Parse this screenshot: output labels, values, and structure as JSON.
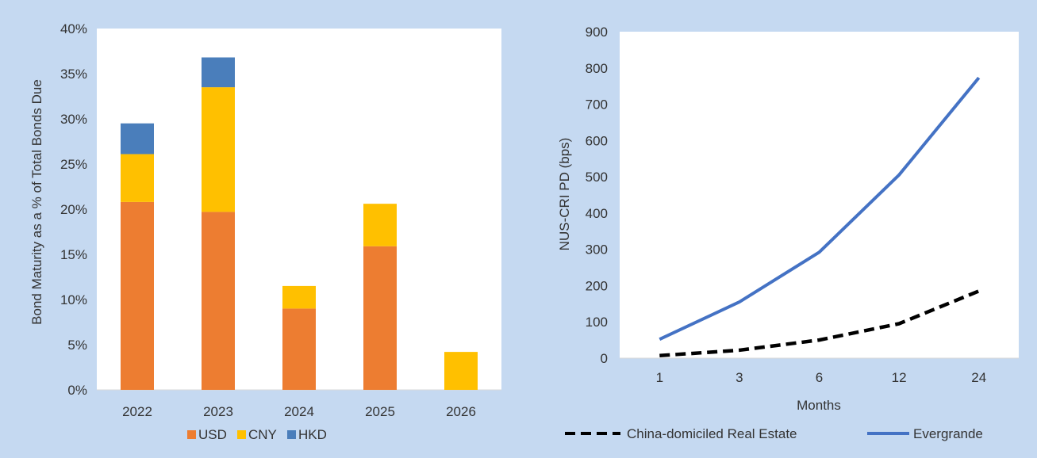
{
  "chart_data": [
    {
      "type": "bar",
      "stacked": true,
      "categories": [
        "2022",
        "2023",
        "2024",
        "2025",
        "2026"
      ],
      "series": [
        {
          "name": "USD",
          "color": "#ed7d31",
          "values": [
            20.8,
            19.7,
            9.0,
            15.9,
            0.0
          ]
        },
        {
          "name": "CNY",
          "color": "#ffc000",
          "values": [
            5.3,
            13.8,
            2.5,
            4.7,
            4.2
          ]
        },
        {
          "name": "HKD",
          "color": "#4a7ebb",
          "values": [
            3.4,
            3.3,
            0.0,
            0.0,
            0.0
          ]
        }
      ],
      "title": "",
      "xlabel": "",
      "ylabel": "Bond Maturity as a % of Total Bonds Due",
      "ylim": [
        0,
        40
      ],
      "yticks": [
        "0%",
        "5%",
        "10%",
        "15%",
        "20%",
        "25%",
        "30%",
        "35%",
        "40%"
      ],
      "grid": false,
      "legend_position": "bottom"
    },
    {
      "type": "line",
      "x": [
        "1",
        "3",
        "6",
        "12",
        "24"
      ],
      "series": [
        {
          "name": "China-domiciled Real Estate",
          "color": "#000000",
          "style": "dashed",
          "values": [
            7,
            22,
            50,
            95,
            185
          ]
        },
        {
          "name": "Evergrande",
          "color": "#4472c4",
          "style": "solid",
          "values": [
            52,
            155,
            292,
            505,
            773
          ]
        }
      ],
      "title": "",
      "xlabel": "Months",
      "ylabel": "NUS-CRI PD (bps)",
      "ylim": [
        0,
        900
      ],
      "yticks": [
        "0",
        "100",
        "200",
        "300",
        "400",
        "500",
        "600",
        "700",
        "800",
        "900"
      ],
      "grid": false,
      "legend_position": "bottom"
    }
  ]
}
